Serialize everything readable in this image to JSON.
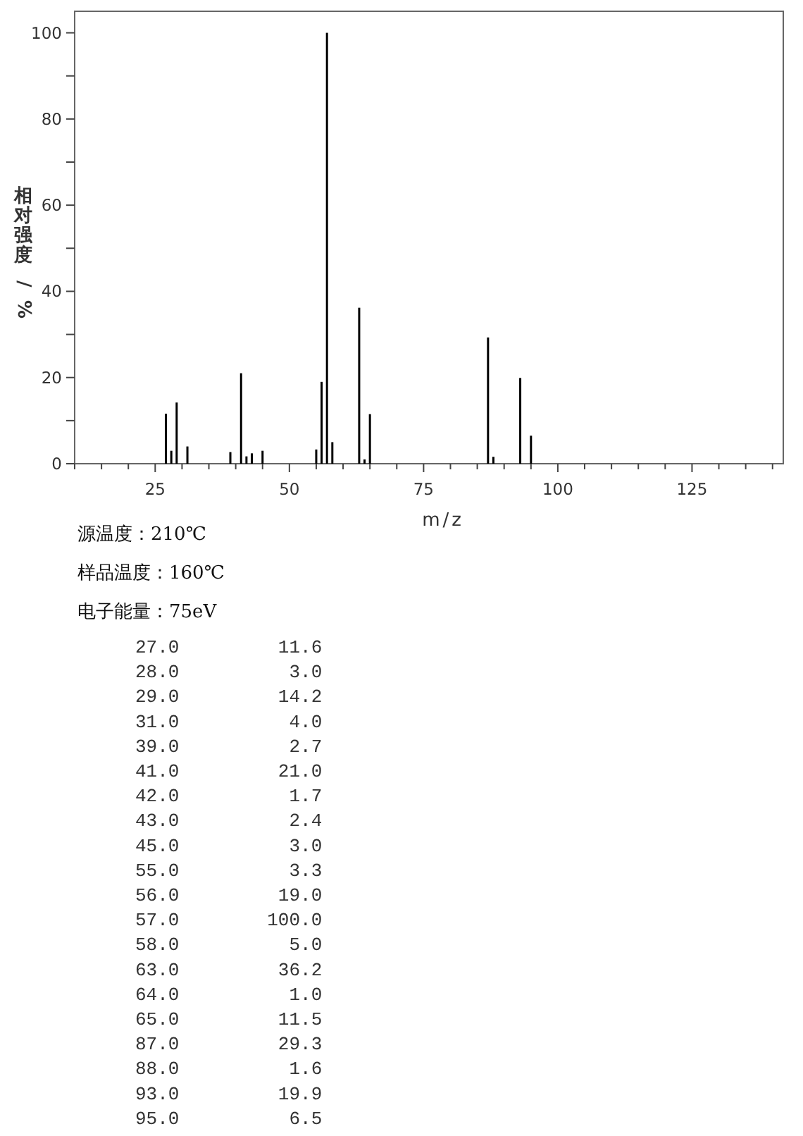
{
  "chart_data": {
    "type": "bar",
    "xlabel": "m/z",
    "ylabel": "相对强度/%",
    "x": [
      27,
      28,
      29,
      31,
      39,
      41,
      42,
      43,
      45,
      55,
      56,
      57,
      58,
      63,
      64,
      65,
      87,
      88,
      93,
      95
    ],
    "values": [
      11.6,
      3.0,
      14.2,
      4.0,
      2.7,
      21.0,
      1.7,
      2.4,
      3.0,
      3.3,
      19.0,
      100.0,
      5.0,
      36.2,
      1.0,
      11.5,
      29.3,
      1.6,
      19.9,
      6.5
    ],
    "color": "#000000",
    "xlim": [
      10,
      142
    ],
    "ylim": [
      0,
      105
    ],
    "xticks": [
      {
        "value": 10,
        "label": null
      },
      {
        "value": 15,
        "label": null
      },
      {
        "value": 20,
        "label": null
      },
      25,
      {
        "value": 30,
        "label": null
      },
      {
        "value": 35,
        "label": null
      },
      {
        "value": 40,
        "label": null
      },
      {
        "value": 45,
        "label": null
      },
      50,
      {
        "value": 55,
        "label": null
      },
      {
        "value": 60,
        "label": null
      },
      {
        "value": 65,
        "label": null
      },
      {
        "value": 70,
        "label": null
      },
      75,
      {
        "value": 80,
        "label": null
      },
      {
        "value": 85,
        "label": null
      },
      {
        "value": 90,
        "label": null
      },
      {
        "value": 95,
        "label": null
      },
      100,
      {
        "value": 105,
        "label": null
      },
      {
        "value": 110,
        "label": null
      },
      {
        "value": 115,
        "label": null
      },
      {
        "value": 120,
        "label": null
      },
      125,
      {
        "value": 130,
        "label": null
      },
      {
        "value": 135,
        "label": null
      },
      {
        "value": 140,
        "label": null
      }
    ],
    "yticks": [
      0,
      {
        "value": 10,
        "label": null
      },
      20,
      {
        "value": 30,
        "label": null
      },
      40,
      {
        "value": 50,
        "label": null
      },
      60,
      {
        "value": 70,
        "label": null
      },
      80,
      {
        "value": 90,
        "label": null
      },
      100
    ],
    "grid": false,
    "annotations": [
      "源温度：210℃",
      "样品温度：160℃",
      "电子能量：75eV",
      "27.0         11.6",
      "28.0          3.0",
      "29.0         14.2",
      "31.0          4.0",
      "39.0          2.7",
      "41.0         21.0",
      "42.0          1.7",
      "43.0          2.4",
      "45.0          3.0",
      "55.0          3.3",
      "56.0         19.0",
      "57.0        100.0",
      "58.0          5.0",
      "63.0         36.2",
      "64.0          1.0",
      "65.0         11.5",
      "87.0         29.3",
      "88.0          1.6",
      "93.0         19.9",
      "95.0          6.5"
    ]
  }
}
